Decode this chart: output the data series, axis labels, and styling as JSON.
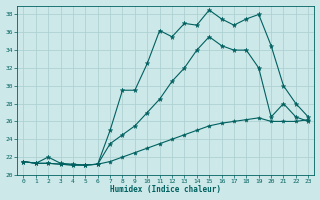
{
  "xlabel": "Humidex (Indice chaleur)",
  "xlim": [
    -0.5,
    23.5
  ],
  "ylim": [
    20,
    39
  ],
  "yticks": [
    20,
    22,
    24,
    26,
    28,
    30,
    32,
    34,
    36,
    38
  ],
  "xticks": [
    0,
    1,
    2,
    3,
    4,
    5,
    6,
    7,
    8,
    9,
    10,
    11,
    12,
    13,
    14,
    15,
    16,
    17,
    18,
    19,
    20,
    21,
    22,
    23
  ],
  "bg_color": "#cce8e8",
  "grid_color": "#aacece",
  "line_color": "#006060",
  "curve1_x": [
    0,
    1,
    2,
    3,
    4,
    5,
    6,
    7,
    8,
    9,
    10,
    11,
    12,
    13,
    14,
    15,
    16,
    17,
    18,
    19,
    20,
    21,
    22,
    23
  ],
  "curve1_y": [
    21.5,
    21.3,
    22.0,
    21.3,
    21.2,
    21.1,
    21.2,
    25.0,
    29.5,
    29.5,
    32.5,
    36.2,
    35.5,
    37.0,
    36.8,
    38.5,
    37.5,
    36.8,
    37.5,
    38.0,
    34.5,
    30.0,
    28.0,
    26.5
  ],
  "curve2_x": [
    0,
    1,
    2,
    3,
    4,
    5,
    6,
    7,
    8,
    9,
    10,
    11,
    12,
    13,
    14,
    15,
    16,
    17,
    18,
    19,
    20,
    21,
    22,
    23
  ],
  "curve2_y": [
    21.5,
    21.3,
    21.3,
    21.2,
    21.1,
    21.1,
    21.2,
    23.5,
    24.5,
    25.5,
    27.0,
    28.5,
    30.5,
    32.0,
    34.0,
    35.5,
    34.5,
    34.0,
    34.0,
    32.0,
    26.5,
    28.0,
    26.5,
    26.0
  ],
  "curve3_x": [
    0,
    1,
    2,
    3,
    4,
    5,
    6,
    7,
    8,
    9,
    10,
    11,
    12,
    13,
    14,
    15,
    16,
    17,
    18,
    19,
    20,
    21,
    22,
    23
  ],
  "curve3_y": [
    21.5,
    21.3,
    21.3,
    21.2,
    21.1,
    21.1,
    21.2,
    21.5,
    22.0,
    22.5,
    23.0,
    23.5,
    24.0,
    24.5,
    25.0,
    25.5,
    25.8,
    26.0,
    26.2,
    26.4,
    26.0,
    26.0,
    26.0,
    26.2
  ]
}
